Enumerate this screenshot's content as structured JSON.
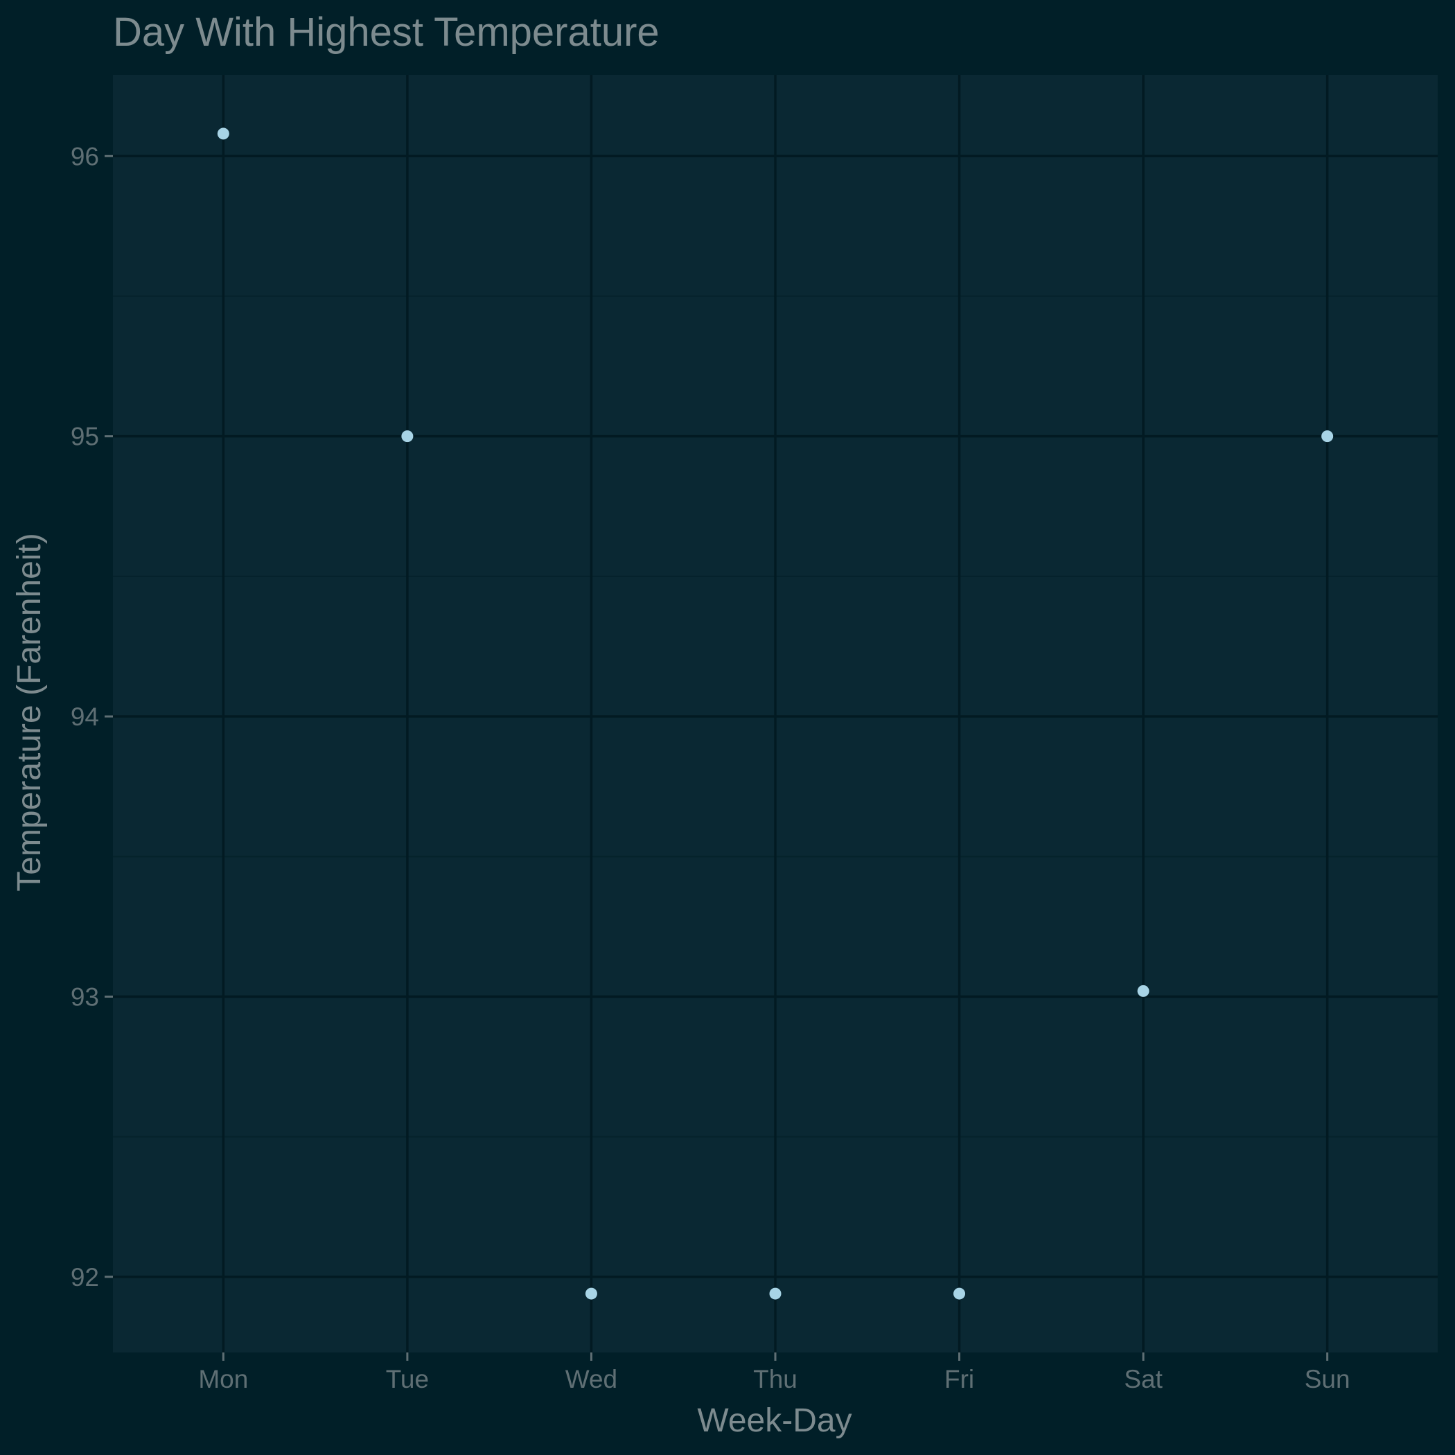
{
  "chart_data": {
    "type": "scatter",
    "title": "Day With Highest Temperature",
    "xlabel": "Week-Day",
    "ylabel": "Temperature (Farenheit)",
    "categories": [
      "Mon",
      "Tue",
      "Wed",
      "Thu",
      "Fri",
      "Sat",
      "Sun"
    ],
    "series": [
      {
        "values": [
          96.08,
          95.0,
          91.94,
          91.94,
          91.94,
          93.02,
          95.0
        ]
      }
    ],
    "ylim": [
      91.73,
      96.29
    ],
    "yticks": [
      92,
      93,
      94,
      95,
      96
    ],
    "grid": true,
    "legend": "none",
    "colors": {
      "page_background": "#011f28",
      "panel_background": "#0a2833",
      "grid_major": "#021a22",
      "grid_minor": "#05222b",
      "point": "#a8d4e6",
      "text": "#7d8b8f",
      "tick_text": "#5f6f74"
    }
  }
}
